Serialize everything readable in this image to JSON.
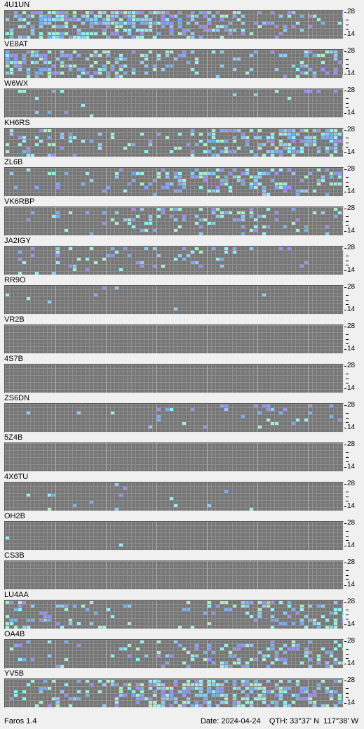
{
  "app_name": "Faros 1.4",
  "status": {
    "date_label": "Date:",
    "date": "2024-04-24",
    "qth_label": "QTH:",
    "latitude": "33°37' N",
    "longitude": "117°38' W"
  },
  "scale": {
    "top": "28",
    "bottom": "14"
  },
  "colors": {
    "empty": "#767676",
    "grid_line": "#8f8f8f",
    "hour_line": "#b4b4b4",
    "levels": [
      "#7aaef2",
      "#8ecbf7",
      "#8ff2f7",
      "#a8f0c8",
      "#9b8ff0"
    ]
  },
  "beacons": [
    {
      "callsign": "4U1UN",
      "activity": 0.55,
      "bands": [
        0.35,
        0.5,
        0.65,
        0.75,
        0.8
      ]
    },
    {
      "callsign": "VE8AT",
      "activity": 0.3,
      "bands": [
        0.3,
        0.35,
        0.45,
        0.5,
        0.4
      ]
    },
    {
      "callsign": "W6WX",
      "activity": 0.05,
      "bands": [
        0.02,
        0.03,
        0.05,
        0.08,
        0.1
      ]
    },
    {
      "callsign": "KH6RS",
      "activity": 0.45,
      "bands": [
        0.3,
        0.45,
        0.55,
        0.6,
        0.55
      ]
    },
    {
      "callsign": "ZL6B",
      "activity": 0.35,
      "bands": [
        0.2,
        0.3,
        0.4,
        0.45,
        0.35
      ]
    },
    {
      "callsign": "VK6RBP",
      "activity": 0.18,
      "bands": [
        0.05,
        0.12,
        0.2,
        0.28,
        0.3
      ]
    },
    {
      "callsign": "JA2IGY",
      "activity": 0.15,
      "bands": [
        0.05,
        0.1,
        0.15,
        0.2,
        0.25
      ]
    },
    {
      "callsign": "RR9O",
      "activity": 0.03,
      "bands": [
        0.01,
        0.02,
        0.03,
        0.04,
        0.05
      ]
    },
    {
      "callsign": "VR2B",
      "activity": 0.0,
      "bands": [
        0,
        0,
        0,
        0,
        0
      ]
    },
    {
      "callsign": "4S7B",
      "activity": 0.0,
      "bands": [
        0,
        0,
        0,
        0,
        0
      ]
    },
    {
      "callsign": "ZS6DN",
      "activity": 0.1,
      "bands": [
        0.04,
        0.08,
        0.1,
        0.15,
        0.18
      ]
    },
    {
      "callsign": "5Z4B",
      "activity": 0.0,
      "bands": [
        0,
        0,
        0,
        0,
        0
      ]
    },
    {
      "callsign": "4X6TU",
      "activity": 0.03,
      "bands": [
        0.02,
        0.03,
        0.04,
        0.04,
        0.03
      ]
    },
    {
      "callsign": "OH2B",
      "activity": 0.01,
      "bands": [
        0.005,
        0.005,
        0.01,
        0.01,
        0.01
      ]
    },
    {
      "callsign": "CS3B",
      "activity": 0.0,
      "bands": [
        0,
        0,
        0,
        0,
        0
      ]
    },
    {
      "callsign": "LU4AA",
      "activity": 0.35,
      "bands": [
        0.3,
        0.35,
        0.4,
        0.4,
        0.35
      ]
    },
    {
      "callsign": "OA4B",
      "activity": 0.3,
      "bands": [
        0.25,
        0.3,
        0.35,
        0.35,
        0.3
      ]
    },
    {
      "callsign": "YV5B",
      "activity": 0.6,
      "bands": [
        0.5,
        0.6,
        0.65,
        0.65,
        0.55
      ]
    }
  ]
}
